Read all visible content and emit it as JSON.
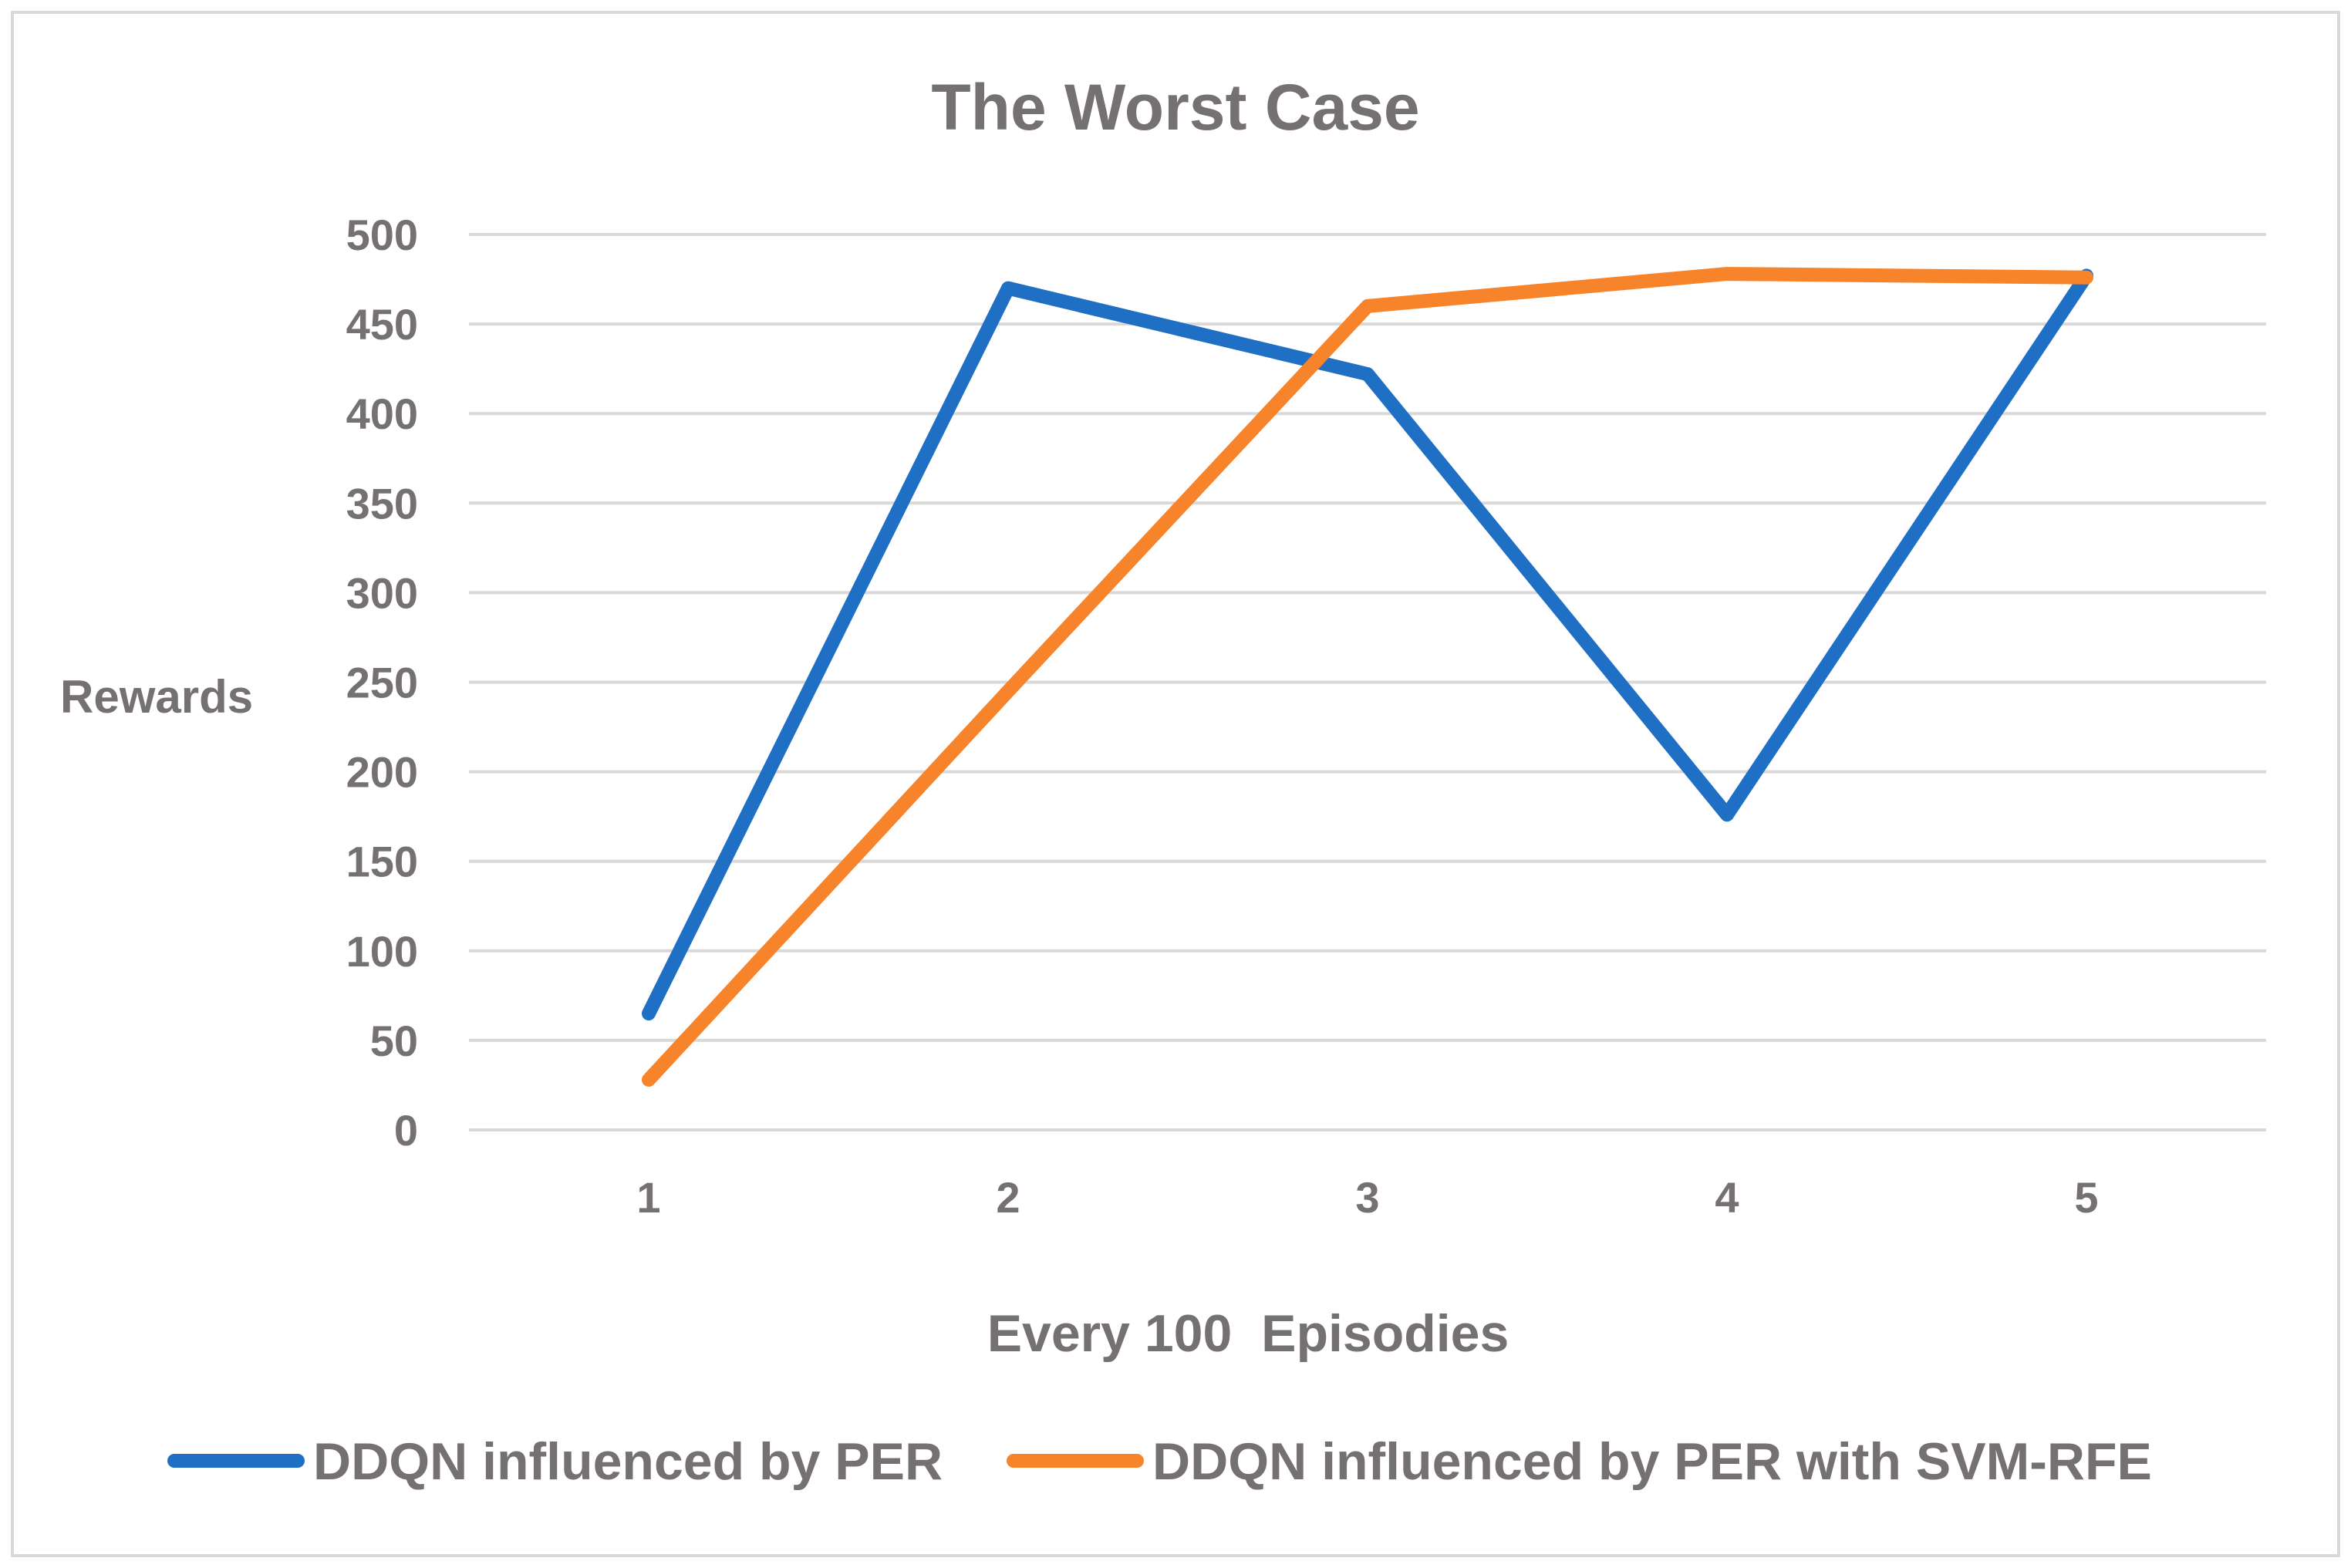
{
  "chart_data": {
    "type": "line",
    "title": "The Worst Case",
    "xlabel": "Every 100  Episodies",
    "ylabel": "Rewards",
    "categories": [
      "1",
      "2",
      "3",
      "4",
      "5"
    ],
    "ylim": [
      0,
      500
    ],
    "yticks": [
      "0",
      "50",
      "100",
      "150",
      "200",
      "250",
      "300",
      "350",
      "400",
      "450",
      "500"
    ],
    "grid": true,
    "legend_position": "bottom",
    "series": [
      {
        "name": "DDQN influenced by PER",
        "color": "#1f6fc5",
        "values": [
          65,
          470,
          422,
          176,
          477
        ]
      },
      {
        "name": "DDQN influenced by PER with SVM-RFE",
        "color": "#f7842a",
        "values": [
          28,
          245,
          460,
          478,
          476
        ]
      }
    ]
  }
}
